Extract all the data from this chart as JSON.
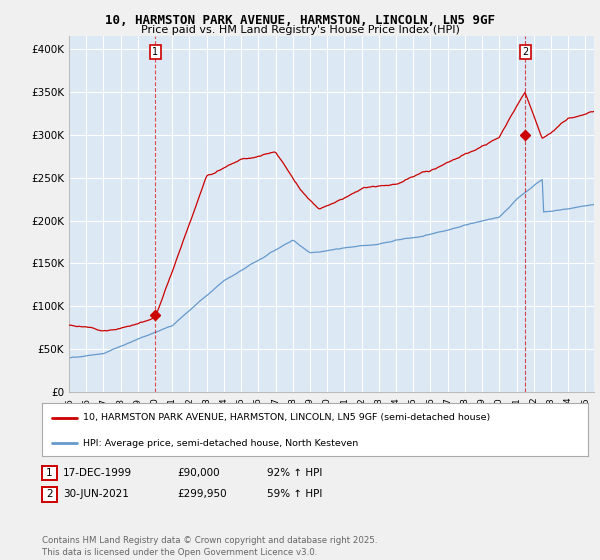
{
  "title_line1": "10, HARMSTON PARK AVENUE, HARMSTON, LINCOLN, LN5 9GF",
  "title_line2": "Price paid vs. HM Land Registry's House Price Index (HPI)",
  "red_color": "#cc0000",
  "blue_color": "#6699cc",
  "background_color": "#f0f0f0",
  "plot_bg_color": "#dce9f5",
  "grid_color": "#ffffff",
  "yticks": [
    0,
    50000,
    100000,
    150000,
    200000,
    250000,
    300000,
    350000,
    400000
  ],
  "ytick_labels": [
    "£0",
    "£50K",
    "£100K",
    "£150K",
    "£200K",
    "£250K",
    "£300K",
    "£350K",
    "£400K"
  ],
  "xlim_start": 1995.0,
  "xlim_end": 2025.5,
  "ylim_min": 0,
  "ylim_max": 415000,
  "marker1_x": 2000.0,
  "marker1_y": 90000,
  "marker2_x": 2021.5,
  "marker2_y": 299950,
  "legend_label_red": "10, HARMSTON PARK AVENUE, HARMSTON, LINCOLN, LN5 9GF (semi-detached house)",
  "legend_label_blue": "HPI: Average price, semi-detached house, North Kesteven",
  "footer": "Contains HM Land Registry data © Crown copyright and database right 2025.\nThis data is licensed under the Open Government Licence v3.0."
}
